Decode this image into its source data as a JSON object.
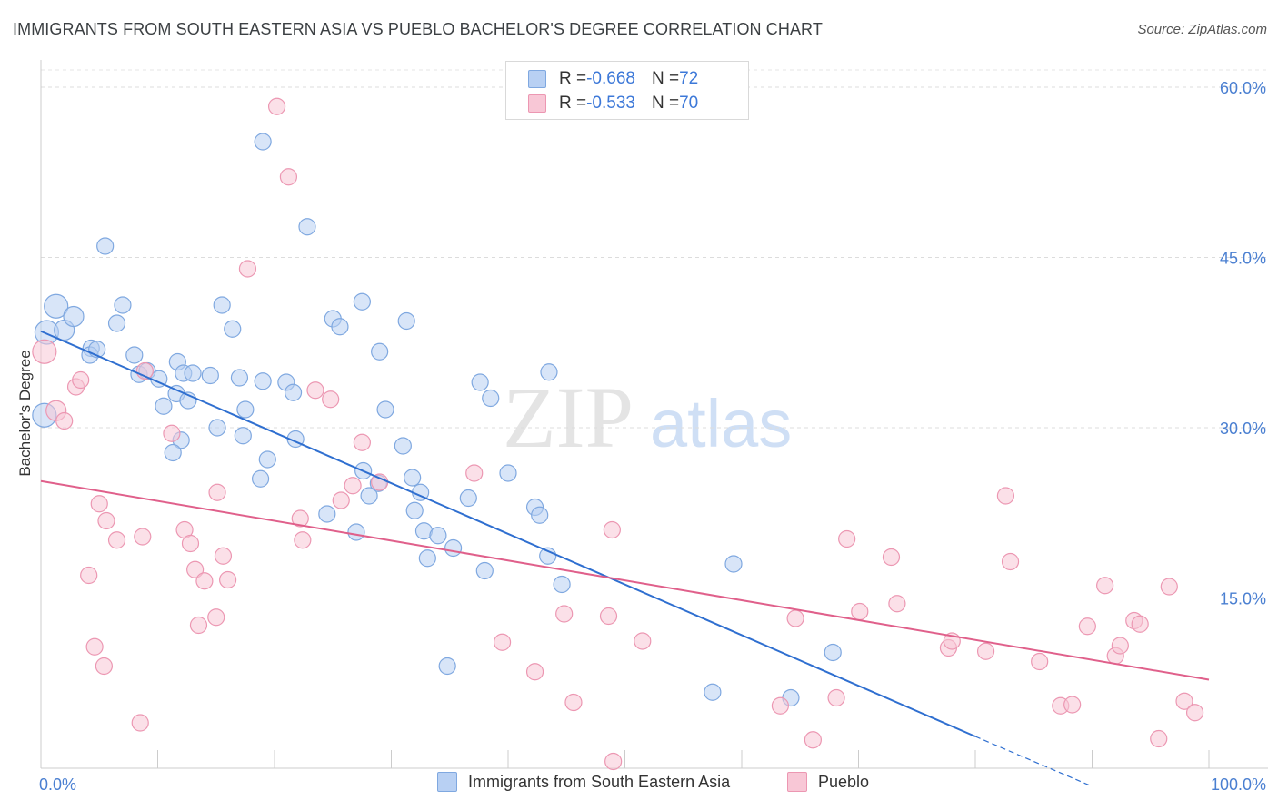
{
  "title": "IMMIGRANTS FROM SOUTH EASTERN ASIA VS PUEBLO BACHELOR'S DEGREE CORRELATION CHART",
  "source": "Source: ZipAtlas.com",
  "watermark": {
    "zip": "ZIP",
    "atlas": "atlas"
  },
  "legend": {
    "rows": [
      {
        "r_label": "R = ",
        "r_value": "-0.668",
        "n_label": "N = ",
        "n_value": "72"
      },
      {
        "r_label": "R = ",
        "r_value": "-0.533",
        "n_label": "N = ",
        "n_value": "70"
      }
    ]
  },
  "colors": {
    "blue": "#7fa8e0",
    "blue_fill": "#b8d0f3",
    "blue_line": "#2f6fd0",
    "pink": "#ec97b2",
    "pink_fill": "#f8c7d6",
    "pink_line": "#e0608b"
  },
  "chart_data": {
    "type": "scatter",
    "title": "IMMIGRANTS FROM SOUTH EASTERN ASIA VS PUEBLO BACHELOR'S DEGREE CORRELATION CHART",
    "xlabel": "",
    "ylabel": "Bachelor's Degree",
    "xlim": [
      0,
      100
    ],
    "ylim": [
      0,
      63
    ],
    "x_tick_labels": [
      "0.0%",
      "100.0%"
    ],
    "y_ticks": [
      15,
      30,
      45,
      60
    ],
    "y_tick_labels": [
      "15.0%",
      "30.0%",
      "45.0%",
      "60.0%"
    ],
    "grid": true,
    "legend_position": "top-center",
    "series": [
      {
        "name": "Immigrants from South Eastern Asia",
        "color": "#7fa8e0",
        "trend": {
          "x": [
            0,
            80
          ],
          "y": [
            38.5,
            2.8
          ],
          "dashed_to": [
            90,
            -1.6
          ]
        },
        "points": [
          [
            1.3,
            40.7,
            3
          ],
          [
            0.5,
            38.4,
            3
          ],
          [
            2.0,
            38.6,
            2
          ],
          [
            0.3,
            31.1,
            3
          ],
          [
            2.8,
            39.8,
            2
          ],
          [
            4.3,
            37.0,
            1
          ],
          [
            4.2,
            36.4,
            1
          ],
          [
            6.5,
            39.2,
            1
          ],
          [
            4.8,
            36.9,
            1
          ],
          [
            7.0,
            40.8,
            1
          ],
          [
            5.5,
            46.0,
            1
          ],
          [
            8.0,
            36.4,
            1
          ],
          [
            8.4,
            34.7,
            1
          ],
          [
            9.1,
            35.0,
            1
          ],
          [
            10.1,
            34.3,
            1
          ],
          [
            11.7,
            35.8,
            1
          ],
          [
            12.2,
            34.8,
            1
          ],
          [
            13.0,
            34.8,
            1
          ],
          [
            10.5,
            31.9,
            1
          ],
          [
            14.5,
            34.6,
            1
          ],
          [
            11.6,
            33.0,
            1
          ],
          [
            12.6,
            32.4,
            1
          ],
          [
            12.0,
            28.9,
            1
          ],
          [
            11.3,
            27.8,
            1
          ],
          [
            15.5,
            40.8,
            1
          ],
          [
            16.4,
            38.7,
            1
          ],
          [
            17.0,
            34.4,
            1
          ],
          [
            19.0,
            34.1,
            1
          ],
          [
            21.0,
            34.0,
            1
          ],
          [
            21.6,
            33.1,
            1
          ],
          [
            17.5,
            31.6,
            1
          ],
          [
            15.1,
            30.0,
            1
          ],
          [
            17.3,
            29.3,
            1
          ],
          [
            19.4,
            27.2,
            1
          ],
          [
            21.8,
            29.0,
            1
          ],
          [
            18.8,
            25.5,
            1
          ],
          [
            19.0,
            55.2,
            1
          ],
          [
            22.8,
            47.7,
            1
          ],
          [
            25.0,
            39.6,
            1
          ],
          [
            25.6,
            38.9,
            1
          ],
          [
            27.5,
            41.1,
            1
          ],
          [
            29.0,
            36.7,
            1
          ],
          [
            29.5,
            31.6,
            1
          ],
          [
            31.0,
            28.4,
            1
          ],
          [
            27.6,
            26.2,
            1
          ],
          [
            28.9,
            25.1,
            1
          ],
          [
            31.8,
            25.6,
            1
          ],
          [
            32.5,
            24.3,
            1
          ],
          [
            28.1,
            24.0,
            1
          ],
          [
            32.0,
            22.7,
            1
          ],
          [
            24.5,
            22.4,
            1
          ],
          [
            27.0,
            20.8,
            1
          ],
          [
            32.8,
            20.9,
            1
          ],
          [
            34.0,
            20.5,
            1
          ],
          [
            36.6,
            23.8,
            1
          ],
          [
            33.1,
            18.5,
            1
          ],
          [
            38.0,
            17.4,
            1
          ],
          [
            37.6,
            34.0,
            1
          ],
          [
            38.5,
            32.6,
            1
          ],
          [
            40.0,
            26.0,
            1
          ],
          [
            42.3,
            23.0,
            1
          ],
          [
            42.7,
            22.3,
            1
          ],
          [
            43.4,
            18.7,
            1
          ],
          [
            44.6,
            16.2,
            1
          ],
          [
            31.3,
            39.4,
            1
          ],
          [
            43.5,
            34.9,
            1
          ],
          [
            35.3,
            19.4,
            1
          ],
          [
            34.8,
            9.0,
            1
          ],
          [
            57.5,
            6.7,
            1
          ],
          [
            59.3,
            18.0,
            1
          ],
          [
            67.8,
            10.2,
            1
          ],
          [
            64.2,
            6.2,
            1
          ]
        ]
      },
      {
        "name": "Pueblo",
        "color": "#ec97b2",
        "trend": {
          "x": [
            0,
            100
          ],
          "y": [
            25.3,
            7.8
          ]
        },
        "points": [
          [
            0.3,
            36.7,
            3
          ],
          [
            1.3,
            31.5,
            2
          ],
          [
            2.0,
            30.6,
            1
          ],
          [
            3.0,
            33.6,
            1
          ],
          [
            3.4,
            34.2,
            1
          ],
          [
            5.0,
            23.3,
            1
          ],
          [
            5.6,
            21.8,
            1
          ],
          [
            6.5,
            20.1,
            1
          ],
          [
            4.1,
            17.0,
            1
          ],
          [
            4.6,
            10.7,
            1
          ],
          [
            5.4,
            9.0,
            1
          ],
          [
            8.7,
            20.4,
            1
          ],
          [
            8.9,
            35.0,
            1
          ],
          [
            11.2,
            29.5,
            1
          ],
          [
            12.3,
            21.0,
            1
          ],
          [
            12.8,
            19.8,
            1
          ],
          [
            13.2,
            17.5,
            1
          ],
          [
            14.0,
            16.5,
            1
          ],
          [
            13.5,
            12.6,
            1
          ],
          [
            15.1,
            24.3,
            1
          ],
          [
            15.6,
            18.7,
            1
          ],
          [
            16.0,
            16.6,
            1
          ],
          [
            15.0,
            13.3,
            1
          ],
          [
            8.5,
            4.0,
            1
          ],
          [
            17.7,
            44.0,
            1
          ],
          [
            20.2,
            58.3,
            1
          ],
          [
            21.2,
            52.1,
            1
          ],
          [
            22.2,
            22.0,
            1
          ],
          [
            22.4,
            20.1,
            1
          ],
          [
            23.5,
            33.3,
            1
          ],
          [
            24.8,
            32.5,
            1
          ],
          [
            25.7,
            23.6,
            1
          ],
          [
            26.7,
            24.9,
            1
          ],
          [
            27.5,
            28.7,
            1
          ],
          [
            29.0,
            25.2,
            1
          ],
          [
            37.1,
            26.0,
            1
          ],
          [
            39.5,
            11.1,
            1
          ],
          [
            42.3,
            8.5,
            1
          ],
          [
            44.8,
            13.6,
            1
          ],
          [
            48.9,
            21.0,
            1
          ],
          [
            48.6,
            13.4,
            1
          ],
          [
            51.5,
            11.2,
            1
          ],
          [
            45.6,
            5.8,
            1
          ],
          [
            49.0,
            0.6,
            1
          ],
          [
            63.3,
            5.5,
            1
          ],
          [
            64.6,
            13.2,
            1
          ],
          [
            66.1,
            2.5,
            1
          ],
          [
            68.1,
            6.2,
            1
          ],
          [
            69.0,
            20.2,
            1
          ],
          [
            70.1,
            13.8,
            1
          ],
          [
            72.8,
            18.6,
            1
          ],
          [
            73.3,
            14.5,
            1
          ],
          [
            77.7,
            10.6,
            1
          ],
          [
            78.0,
            11.2,
            1
          ],
          [
            80.9,
            10.3,
            1
          ],
          [
            82.6,
            24.0,
            1
          ],
          [
            83.0,
            18.2,
            1
          ],
          [
            85.5,
            9.4,
            1
          ],
          [
            87.3,
            5.5,
            1
          ],
          [
            88.3,
            5.6,
            1
          ],
          [
            89.6,
            12.5,
            1
          ],
          [
            91.1,
            16.1,
            1
          ],
          [
            92.0,
            9.9,
            1
          ],
          [
            92.4,
            10.8,
            1
          ],
          [
            93.6,
            13.0,
            1
          ],
          [
            94.1,
            12.7,
            1
          ],
          [
            95.7,
            2.6,
            1
          ],
          [
            96.6,
            16.0,
            1
          ],
          [
            97.9,
            5.9,
            1
          ],
          [
            98.8,
            4.9,
            1
          ]
        ]
      }
    ]
  },
  "bottom_legend": [
    {
      "label": "Immigrants from South Eastern Asia"
    },
    {
      "label": "Pueblo"
    }
  ]
}
